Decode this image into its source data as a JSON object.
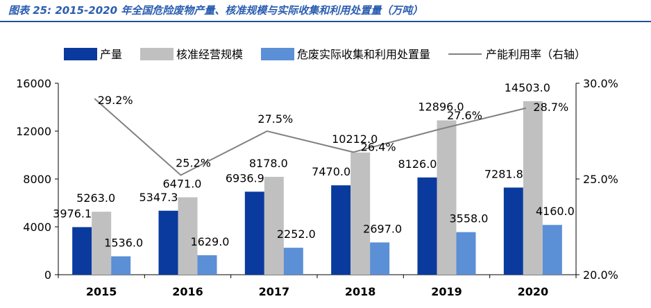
{
  "caption": "图表 25: 2015-2020 年全国危险废物产量、核准规模与实际收集和利用处置量（万吨）",
  "chart_data": {
    "type": "bar",
    "categories": [
      "2015",
      "2016",
      "2017",
      "2018",
      "2019",
      "2020"
    ],
    "series": [
      {
        "name": "产量",
        "type": "bar",
        "color": "#0a3a9e",
        "values": [
          3976.1,
          5347.3,
          6936.9,
          7470.0,
          8126.0,
          7281.8
        ],
        "labels": [
          "3976.1",
          "5347.3",
          "6936.9",
          "7470.0",
          "8126.0",
          "7281.8"
        ]
      },
      {
        "name": "核准经营规模",
        "type": "bar",
        "color": "#c0c0c0",
        "values": [
          5263.0,
          6471.0,
          8178.0,
          10212.0,
          12896.0,
          14503.0
        ],
        "labels": [
          "5263.0",
          "6471.0",
          "8178.0",
          "10212.0",
          "12896.0",
          "14503.0"
        ]
      },
      {
        "name": "危废实际收集和利用处置量",
        "type": "bar",
        "color": "#5b8fd6",
        "values": [
          1536.0,
          1629.0,
          2252.0,
          2697.0,
          3558.0,
          4160.0
        ],
        "labels": [
          "1536.0",
          "1629.0",
          "2252.0",
          "2697.0",
          "3558.0",
          "4160.0"
        ]
      },
      {
        "name": "产能利用率（右轴）",
        "type": "line",
        "axis": "right",
        "color": "#808080",
        "values": [
          29.2,
          25.2,
          27.5,
          26.4,
          27.6,
          28.7
        ],
        "labels": [
          "29.2%",
          "25.2%",
          "27.5%",
          "26.4%",
          "27.6%",
          "28.7%"
        ]
      }
    ],
    "y_left": {
      "range": [
        0,
        16000
      ],
      "ticks": [
        "0",
        "4000",
        "8000",
        "12000",
        "16000"
      ]
    },
    "y_right": {
      "range": [
        20,
        30
      ],
      "ticks": [
        "20.0%",
        "25.0%",
        "30.0%"
      ]
    },
    "legend": "top",
    "grid": false
  }
}
